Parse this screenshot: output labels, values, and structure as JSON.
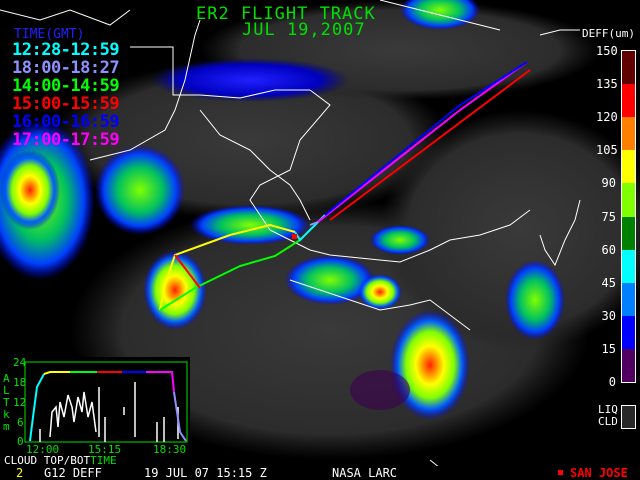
{
  "title": "ER2 FLIGHT TRACK",
  "date": "JUL 19,2007",
  "legend": {
    "header": "TIME(GMT)",
    "items": [
      {
        "label": "12:28-12:59",
        "color": "#00ffff"
      },
      {
        "label": "18:00-18:27",
        "color": "#9090ff"
      },
      {
        "label": "14:00-14:59",
        "color": "#00ff00"
      },
      {
        "label": "15:00-15:59",
        "color": "#ff0000"
      },
      {
        "label": "16:00-16:59",
        "color": "#0000ff"
      },
      {
        "label": "17:00-17:59",
        "color": "#ff00ff"
      }
    ]
  },
  "colorbar": {
    "title": "DEFF(um)",
    "ticks": [
      "150",
      "135",
      "120",
      "105",
      "90",
      "75",
      "60",
      "45",
      "30",
      "15",
      "0"
    ],
    "colors": [
      "#600000",
      "#ff0000",
      "#ff8000",
      "#ffff00",
      "#80ff00",
      "#008000",
      "#00ffff",
      "#0080ff",
      "#0000ff",
      "#500060"
    ],
    "liq_label_1": "LIQ",
    "liq_label_2": "CLD",
    "liq_color": "#282828"
  },
  "inset": {
    "ylabel": [
      "A",
      "L",
      "T",
      "k",
      "m"
    ],
    "yticks": [
      "24",
      "18",
      "12",
      "6",
      "0"
    ],
    "xticks": [
      "12:00",
      "15:15",
      "18:30"
    ],
    "caption_white": "CLOUD TOP/BOT",
    "caption_green": "TIME"
  },
  "bottom_bar": {
    "channel": "2",
    "product": "G12 DEFF",
    "datetime": "19 JUL 07 15:15 Z",
    "source": "NASA LARC",
    "station": "SAN JOSE",
    "station_color": "#ff0000"
  }
}
